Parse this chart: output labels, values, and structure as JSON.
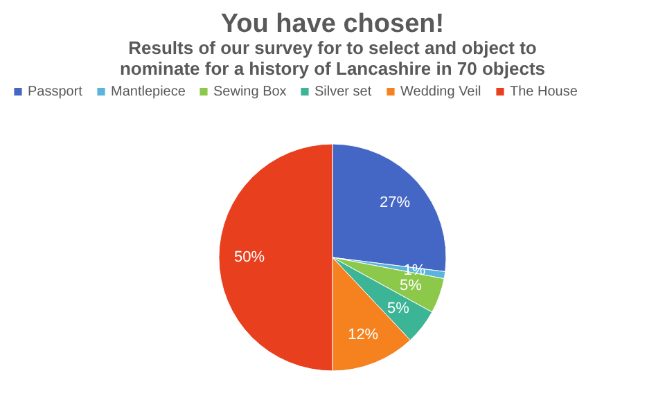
{
  "chart_data": {
    "type": "pie",
    "title": "You have chosen!",
    "subtitle": [
      "Results of our survey for to select and object to",
      "nominate for a history of Lancashire in 70 objects"
    ],
    "categories": [
      "Passport",
      "Mantlepiece",
      "Sewing Box",
      "Silver set",
      "Wedding Veil",
      "The House"
    ],
    "values": [
      27,
      1,
      5,
      5,
      12,
      50
    ],
    "value_labels": [
      "27%",
      "1%",
      "5%",
      "5%",
      "12%",
      "50%"
    ],
    "colors": [
      "#4466c4",
      "#5bb4dc",
      "#8cc84a",
      "#3cb496",
      "#f5821f",
      "#e8401e"
    ],
    "legend": "top"
  }
}
